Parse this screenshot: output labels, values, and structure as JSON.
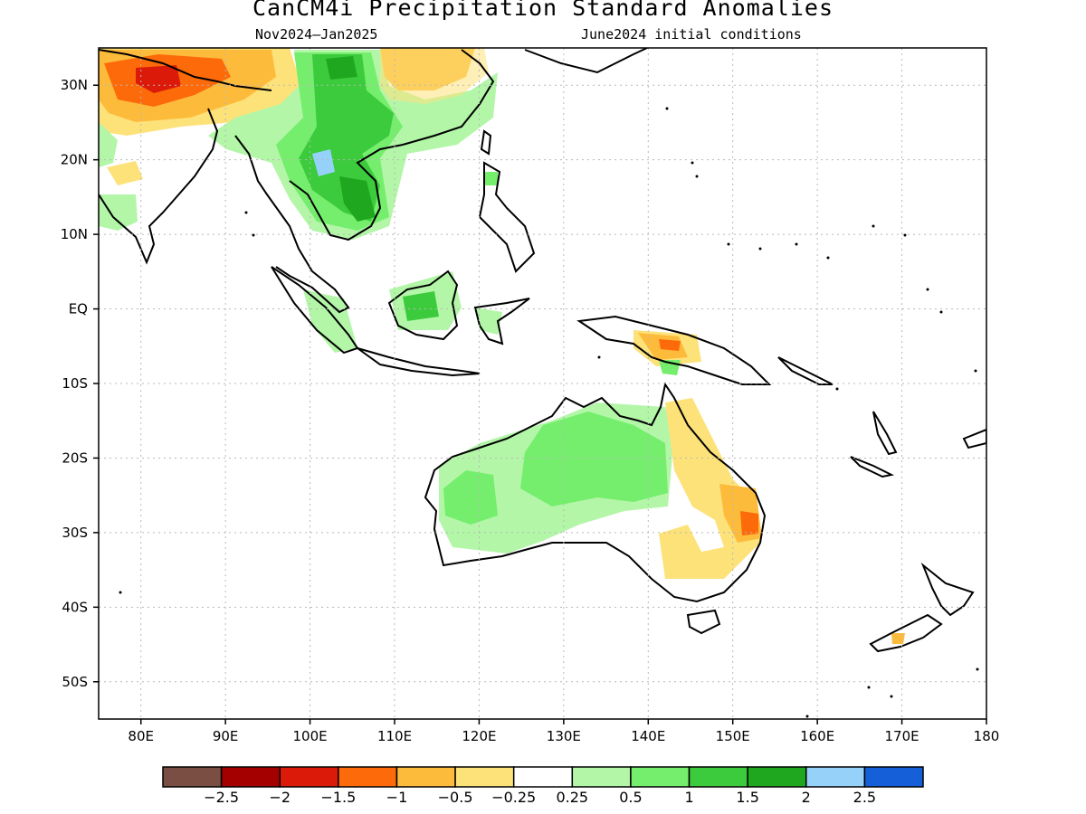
{
  "title": "CanCM4i Precipitation Standard Anomalies",
  "subtitle_left": "Nov2024—Jan2025",
  "subtitle_right": "June2024 initial conditions",
  "map": {
    "lon_range": [
      75,
      180
    ],
    "lat_range": [
      -55,
      35
    ],
    "lon_ticks": [
      {
        "v": 80,
        "label": "80E"
      },
      {
        "v": 90,
        "label": "90E"
      },
      {
        "v": 100,
        "label": "100E"
      },
      {
        "v": 110,
        "label": "110E"
      },
      {
        "v": 120,
        "label": "120E"
      },
      {
        "v": 130,
        "label": "130E"
      },
      {
        "v": 140,
        "label": "140E"
      },
      {
        "v": 150,
        "label": "150E"
      },
      {
        "v": 160,
        "label": "160E"
      },
      {
        "v": 170,
        "label": "170E"
      },
      {
        "v": 180,
        "label": "180"
      }
    ],
    "lat_ticks": [
      {
        "v": 30,
        "label": "30N"
      },
      {
        "v": 20,
        "label": "20N"
      },
      {
        "v": 10,
        "label": "10N"
      },
      {
        "v": 0,
        "label": "EQ"
      },
      {
        "v": -10,
        "label": "10S"
      },
      {
        "v": -20,
        "label": "20S"
      },
      {
        "v": -30,
        "label": "30S"
      },
      {
        "v": -40,
        "label": "40S"
      },
      {
        "v": -50,
        "label": "50S"
      }
    ],
    "gridlines": true
  },
  "legend": {
    "colors": [
      "#7a4e42",
      "#a50000",
      "#dc1a0a",
      "#fc6a0a",
      "#fdbb3c",
      "#fde27a",
      "#ffffff",
      "#b3f6a8",
      "#74ee6c",
      "#3ccb3c",
      "#1fa81f",
      "#96d1fa",
      "#1560d8"
    ],
    "labels": [
      "−2.5",
      "−2",
      "−1.5",
      "−1",
      "−0.5",
      "−0.25",
      "0.25",
      "0.5",
      "1",
      "1.5",
      "2",
      "2.5"
    ]
  }
}
